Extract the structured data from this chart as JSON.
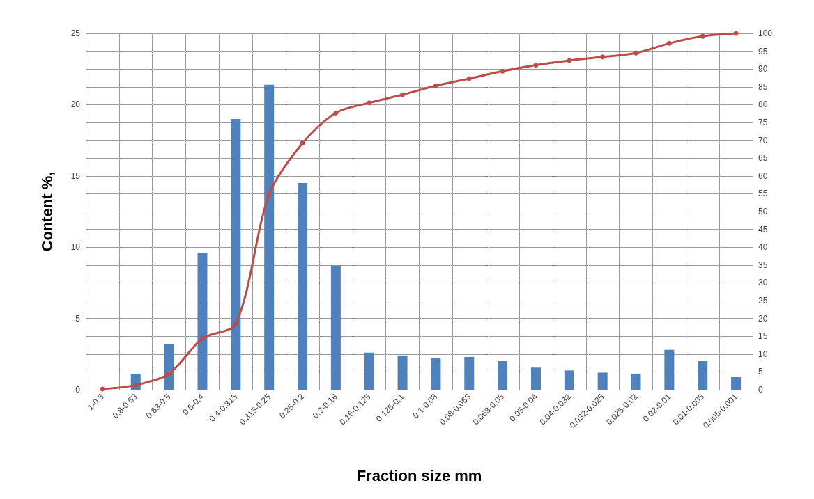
{
  "chart_data": {
    "type": "bar",
    "xlabel": "Fraction size mm",
    "ylabel": "Content %,",
    "categories": [
      "1-0.8",
      "0.8-0.63",
      "0.63-0.5",
      "0.5-0.4",
      "0.4-0.315",
      "0.315-0.25",
      "0.25-0.2",
      "0.2-0.16",
      "0.16-0.125",
      "0.125-0.1",
      "0.1-0.08",
      "0.08-0.063",
      "0.063-0.05",
      "0.05-0.04",
      "0.04-0.032",
      "0.032-0.025",
      "0.025-0.02",
      "0.02-0.01",
      "0.01-0.005",
      "0.005-0.001"
    ],
    "series": [
      {
        "color": "#4f81bd",
        "values": [
          0,
          1.1,
          3.2,
          9.6,
          19.0,
          21.4,
          14.5,
          8.7,
          2.6,
          2.4,
          2.2,
          2.3,
          2.0,
          1.55,
          1.35,
          1.2,
          1.1,
          2.8,
          2.05,
          0.9
        ]
      },
      {
        "type": "line",
        "axis": "y2",
        "color": "#be4b48",
        "marker": "circle",
        "values": [
          0.2,
          1.3,
          4.5,
          14.4,
          18.5,
          54.8,
          69.2,
          77.7,
          80.5,
          82.8,
          85.3,
          87.3,
          89.4,
          91.1,
          92.4,
          93.4,
          94.5,
          97.2,
          99.2,
          100
        ]
      }
    ],
    "ylim": [
      0,
      25
    ],
    "yticks": [
      0,
      5,
      10,
      15,
      20,
      25
    ],
    "y2lim": [
      0,
      100
    ],
    "y2ticks": [
      0,
      5,
      10,
      15,
      20,
      25,
      30,
      35,
      40,
      45,
      50,
      55,
      60,
      65,
      70,
      75,
      80,
      85,
      90,
      95,
      100
    ],
    "grid": true
  }
}
